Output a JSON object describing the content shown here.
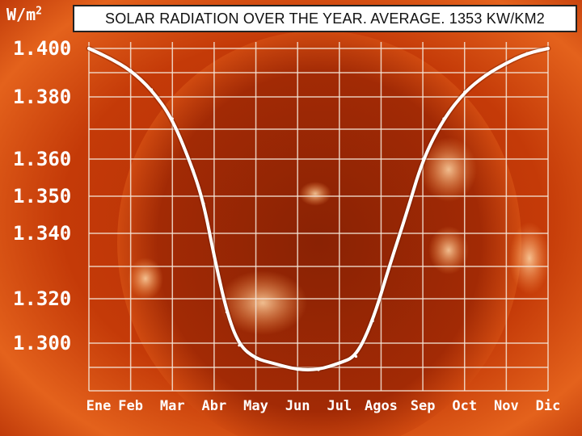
{
  "chart_data": {
    "type": "line",
    "title": "SOLAR RADIATION OVER THE YEAR. AVERAGE. 1353 KW/KM2",
    "ylabel": "W/m",
    "ylabel_superscript": "2",
    "xlabel": "",
    "categories": [
      "Ene",
      "Feb",
      "Mar",
      "Abr",
      "May",
      "Jun",
      "Jul",
      "Agos",
      "Sep",
      "Oct",
      "Nov",
      "Dic"
    ],
    "y_ticks": [
      "1.400",
      "1.380",
      "1.360",
      "1.350",
      "1.340",
      "1.320",
      "1.300"
    ],
    "y_tick_values": [
      1.4,
      1.38,
      1.36,
      1.35,
      1.34,
      1.32,
      1.3
    ],
    "series": [
      {
        "name": "Solar radiation",
        "x": [
          0,
          0.5,
          1,
          1.5,
          2,
          2.5,
          2.75,
          3,
          3.3,
          3.6,
          4,
          4.4,
          5,
          5.5,
          6,
          6.4,
          6.8,
          7.2,
          7.6,
          8,
          8.5,
          9,
          9.5,
          10,
          10.5,
          11
        ],
        "values": [
          1.4,
          1.396,
          1.391,
          1.383,
          1.373,
          1.357,
          1.348,
          1.333,
          1.314,
          1.299,
          1.293,
          1.291,
          1.288,
          1.288,
          1.291,
          1.294,
          1.31,
          1.33,
          1.345,
          1.36,
          1.373,
          1.382,
          1.389,
          1.394,
          1.398,
          1.4
        ]
      }
    ],
    "colors": {
      "background": "#c83a0a",
      "grid": "#f5e6d8",
      "line": "#ffffff",
      "axis_text": "#ffffff"
    }
  }
}
